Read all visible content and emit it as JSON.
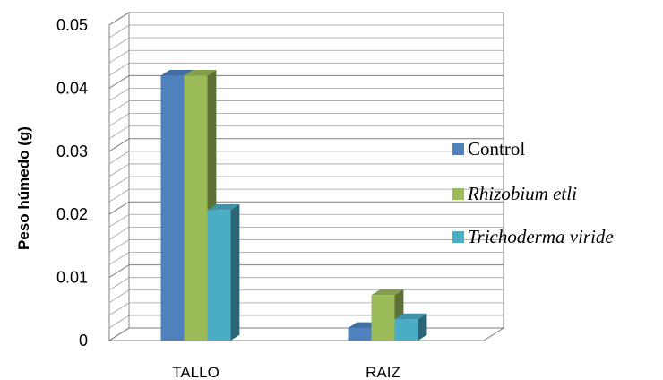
{
  "chart_data": {
    "type": "bar",
    "style": "3d-clustered-column",
    "categories": [
      "TALLO",
      "RAIZ"
    ],
    "series": [
      {
        "name": "Control",
        "values": [
          0.042,
          0.002
        ],
        "color": "#4f81bd",
        "italic": false
      },
      {
        "name": "Rhizobium etli",
        "values": [
          0.042,
          0.0072
        ],
        "color": "#9bbb59",
        "italic": true
      },
      {
        "name": "Trichoderma viride",
        "values": [
          0.0207,
          0.0034
        ],
        "color": "#4bacc6",
        "italic": true
      }
    ],
    "title": "",
    "xlabel": "",
    "ylabel": "Peso húmedo (g)",
    "ylim": [
      0,
      0.05
    ],
    "yticks": [
      "0",
      "0.01",
      "0.02",
      "0.03",
      "0.04",
      "0.05"
    ],
    "grid": true,
    "legend": "right"
  }
}
